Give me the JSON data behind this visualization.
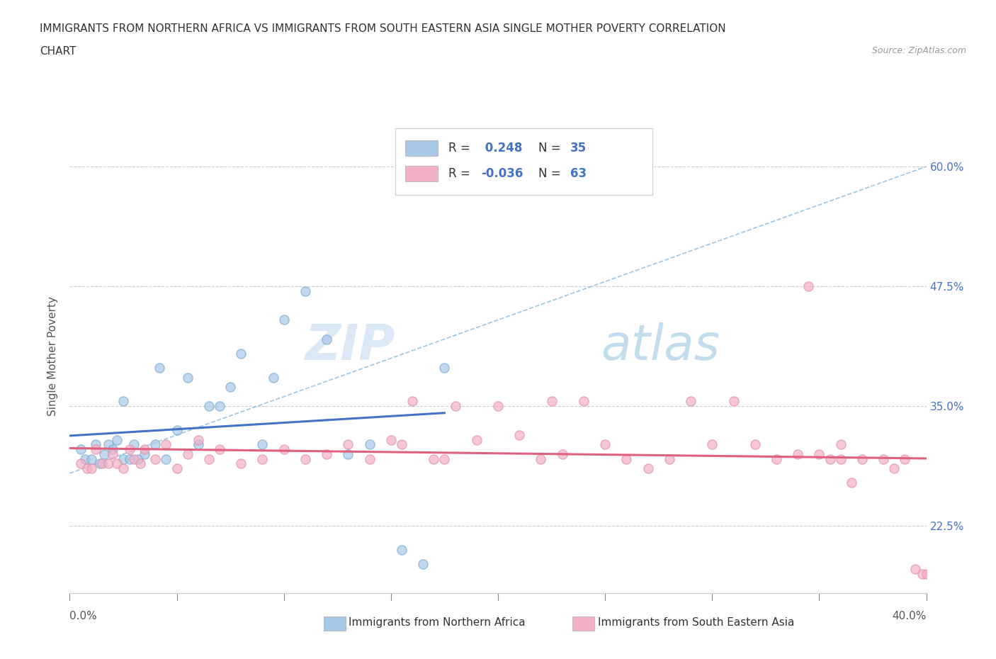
{
  "title_line1": "IMMIGRANTS FROM NORTHERN AFRICA VS IMMIGRANTS FROM SOUTH EASTERN ASIA SINGLE MOTHER POVERTY CORRELATION",
  "title_line2": "CHART",
  "source": "Source: ZipAtlas.com",
  "ylabel": "Single Mother Poverty",
  "yticks": [
    "22.5%",
    "35.0%",
    "47.5%",
    "60.0%"
  ],
  "ytick_vals": [
    0.225,
    0.35,
    0.475,
    0.6
  ],
  "xlim": [
    0.0,
    0.4
  ],
  "ylim": [
    0.155,
    0.65
  ],
  "color_blue": "#A8C8E8",
  "color_pink": "#F4B0C8",
  "trendline_blue_color": "#4472C4",
  "trendline_pink_color": "#E06080",
  "trendline_dashed_color": "#90C0E0",
  "watermark_zip": "ZIP",
  "watermark_atlas": "atlas",
  "blue_scatter_x": [
    0.005,
    0.007,
    0.01,
    0.012,
    0.014,
    0.016,
    0.018,
    0.02,
    0.022,
    0.025,
    0.025,
    0.028,
    0.03,
    0.032,
    0.035,
    0.04,
    0.042,
    0.045,
    0.05,
    0.055,
    0.06,
    0.065,
    0.07,
    0.075,
    0.08,
    0.09,
    0.095,
    0.1,
    0.11,
    0.12,
    0.13,
    0.14,
    0.155,
    0.165,
    0.175
  ],
  "blue_scatter_y": [
    0.305,
    0.295,
    0.295,
    0.31,
    0.29,
    0.3,
    0.31,
    0.305,
    0.315,
    0.295,
    0.355,
    0.295,
    0.31,
    0.295,
    0.3,
    0.31,
    0.39,
    0.295,
    0.325,
    0.38,
    0.31,
    0.35,
    0.35,
    0.37,
    0.405,
    0.31,
    0.38,
    0.44,
    0.47,
    0.42,
    0.3,
    0.31,
    0.2,
    0.185,
    0.39
  ],
  "pink_scatter_x": [
    0.005,
    0.008,
    0.01,
    0.012,
    0.015,
    0.018,
    0.02,
    0.022,
    0.025,
    0.028,
    0.03,
    0.033,
    0.035,
    0.04,
    0.045,
    0.05,
    0.055,
    0.06,
    0.065,
    0.07,
    0.08,
    0.09,
    0.1,
    0.11,
    0.12,
    0.13,
    0.14,
    0.15,
    0.155,
    0.16,
    0.17,
    0.175,
    0.18,
    0.19,
    0.2,
    0.21,
    0.22,
    0.225,
    0.23,
    0.24,
    0.25,
    0.26,
    0.27,
    0.28,
    0.29,
    0.3,
    0.31,
    0.32,
    0.33,
    0.34,
    0.345,
    0.35,
    0.355,
    0.36,
    0.36,
    0.365,
    0.37,
    0.38,
    0.385,
    0.39,
    0.395,
    0.398,
    0.4
  ],
  "pink_scatter_y": [
    0.29,
    0.285,
    0.285,
    0.305,
    0.29,
    0.29,
    0.3,
    0.29,
    0.285,
    0.305,
    0.295,
    0.29,
    0.305,
    0.295,
    0.31,
    0.285,
    0.3,
    0.315,
    0.295,
    0.305,
    0.29,
    0.295,
    0.305,
    0.295,
    0.3,
    0.31,
    0.295,
    0.315,
    0.31,
    0.355,
    0.295,
    0.295,
    0.35,
    0.315,
    0.35,
    0.32,
    0.295,
    0.355,
    0.3,
    0.355,
    0.31,
    0.295,
    0.285,
    0.295,
    0.355,
    0.31,
    0.355,
    0.31,
    0.295,
    0.3,
    0.475,
    0.3,
    0.295,
    0.295,
    0.31,
    0.27,
    0.295,
    0.295,
    0.285,
    0.295,
    0.18,
    0.175,
    0.175
  ]
}
